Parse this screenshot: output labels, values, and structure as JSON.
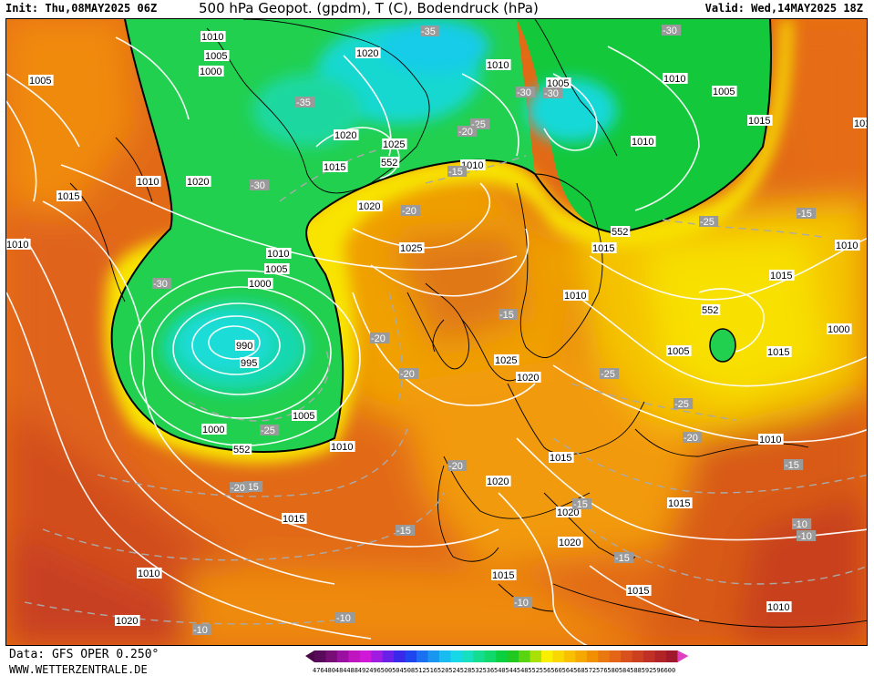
{
  "header": {
    "init": "Init: Thu,08MAY2025 06Z",
    "title": "500 hPa Geopot. (gpdm), T (C), Bodendruck (hPa)",
    "valid": "Valid: Wed,14MAY2025 18Z"
  },
  "footer": {
    "data_source": "Data: GFS OPER 0.250°",
    "website": "WWW.WETTERZENTRALE.DE"
  },
  "colors": {
    "deep_green": "#00c832",
    "green": "#2cd65a",
    "cyan": "#18d8e8",
    "yellow": "#f8f000",
    "orange": "#f0a000",
    "dark_orange": "#e06a14",
    "red": "#c83c20",
    "contour": "#ffffff",
    "gph_line": "#000000"
  },
  "legend": {
    "ticks": [
      "476",
      "480",
      "484",
      "488",
      "492",
      "496",
      "500",
      "504",
      "508",
      "512",
      "516",
      "520",
      "524",
      "528",
      "532",
      "536",
      "540",
      "544",
      "548",
      "552",
      "556",
      "560",
      "564",
      "568",
      "572",
      "576",
      "580",
      "584",
      "588",
      "592",
      "596",
      "600"
    ],
    "colors": [
      "#5a0a5a",
      "#760e76",
      "#9a10a0",
      "#c014c0",
      "#d018d8",
      "#a01ce0",
      "#6a20e8",
      "#3a28ea",
      "#1e46ee",
      "#1a70f0",
      "#1896f0",
      "#18bcf0",
      "#18d8e8",
      "#16e0c0",
      "#14dc90",
      "#10d86a",
      "#0ad040",
      "#20c820",
      "#58d410",
      "#a8e008",
      "#f8f000",
      "#f8d800",
      "#f8c000",
      "#f4a800",
      "#f09000",
      "#ea7810",
      "#e46418",
      "#d8501c",
      "#cc4020",
      "#c03024",
      "#b02428",
      "#a0182c"
    ]
  },
  "pressure_labels": [
    {
      "text": "1010"
    },
    {
      "text": "1005"
    },
    {
      "text": "1000"
    },
    {
      "text": "1005"
    },
    {
      "text": "1020"
    },
    {
      "text": "1010"
    },
    {
      "text": "1005"
    },
    {
      "text": "1010"
    },
    {
      "text": "1005"
    },
    {
      "text": "1020"
    },
    {
      "text": "1025"
    },
    {
      "text": "1015"
    },
    {
      "text": "1015"
    },
    {
      "text": "1010"
    },
    {
      "text": "1010"
    },
    {
      "text": "1020"
    },
    {
      "text": "1015"
    },
    {
      "text": "1010"
    },
    {
      "text": "1020"
    },
    {
      "text": "1025"
    },
    {
      "text": "1010"
    },
    {
      "text": "1005"
    },
    {
      "text": "1000"
    },
    {
      "text": "990"
    },
    {
      "text": "995"
    },
    {
      "text": "1000"
    },
    {
      "text": "1005"
    },
    {
      "text": "1010"
    },
    {
      "text": "1015"
    },
    {
      "text": "1020"
    },
    {
      "text": "1025"
    },
    {
      "text": "1020"
    },
    {
      "text": "1015"
    },
    {
      "text": "1015"
    },
    {
      "text": "1010"
    },
    {
      "text": "1015"
    },
    {
      "text": "1010"
    },
    {
      "text": "1005"
    },
    {
      "text": "1015"
    },
    {
      "text": "1000"
    },
    {
      "text": "1010"
    },
    {
      "text": "1015"
    },
    {
      "text": "1020"
    },
    {
      "text": "1020"
    },
    {
      "text": "1015"
    },
    {
      "text": "1015"
    },
    {
      "text": "1010"
    },
    {
      "text": "1020"
    },
    {
      "text": "1010"
    },
    {
      "text": "1015"
    },
    {
      "text": "1010"
    }
  ],
  "temp_labels": [
    {
      "text": "-35"
    },
    {
      "text": "-30"
    },
    {
      "text": "-30"
    },
    {
      "text": "-35"
    },
    {
      "text": "-25"
    },
    {
      "text": "-20"
    },
    {
      "text": "-15"
    },
    {
      "text": "-30"
    },
    {
      "text": "-20"
    },
    {
      "text": "-30"
    },
    {
      "text": "-30"
    },
    {
      "text": "-20"
    },
    {
      "text": "-20"
    },
    {
      "text": "-25"
    },
    {
      "text": "-15"
    },
    {
      "text": "-20"
    },
    {
      "text": "-25"
    },
    {
      "text": "-25"
    },
    {
      "text": "-15"
    },
    {
      "text": "-20"
    },
    {
      "text": "-15"
    },
    {
      "text": "-15"
    },
    {
      "text": "-15"
    },
    {
      "text": "-10"
    },
    {
      "text": "-10"
    },
    {
      "text": "-10"
    },
    {
      "text": "-10"
    },
    {
      "text": "-15"
    },
    {
      "text": "-10"
    },
    {
      "text": "-25"
    },
    {
      "text": "-20"
    },
    {
      "text": "-15"
    }
  ],
  "gph_labels": [
    {
      "text": "552"
    },
    {
      "text": "552"
    },
    {
      "text": "552"
    },
    {
      "text": "552"
    }
  ]
}
